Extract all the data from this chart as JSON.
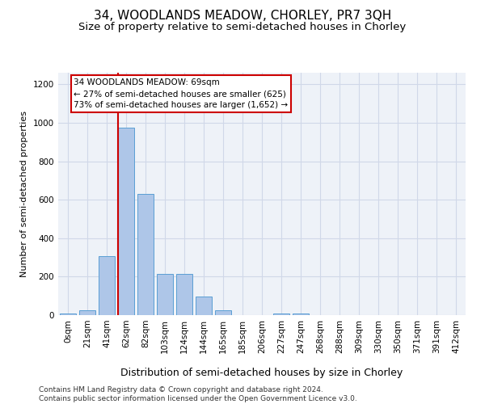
{
  "title": "34, WOODLANDS MEADOW, CHORLEY, PR7 3QH",
  "subtitle": "Size of property relative to semi-detached houses in Chorley",
  "xlabel": "Distribution of semi-detached houses by size in Chorley",
  "ylabel": "Number of semi-detached properties",
  "footer_line1": "Contains HM Land Registry data © Crown copyright and database right 2024.",
  "footer_line2": "Contains public sector information licensed under the Open Government Licence v3.0.",
  "bar_labels": [
    "0sqm",
    "21sqm",
    "41sqm",
    "62sqm",
    "82sqm",
    "103sqm",
    "124sqm",
    "144sqm",
    "165sqm",
    "185sqm",
    "206sqm",
    "227sqm",
    "247sqm",
    "268sqm",
    "288sqm",
    "309sqm",
    "330sqm",
    "350sqm",
    "371sqm",
    "391sqm",
    "412sqm"
  ],
  "bar_values": [
    10,
    25,
    305,
    975,
    630,
    215,
    215,
    95,
    25,
    0,
    0,
    10,
    10,
    0,
    0,
    0,
    0,
    0,
    0,
    0,
    0
  ],
  "bar_color": "#aec6e8",
  "bar_edge_color": "#5a9fd4",
  "property_line_x": 2.575,
  "property_line_label": "34 WOODLANDS MEADOW: 69sqm",
  "annotation_line1": "← 27% of semi-detached houses are smaller (625)",
  "annotation_line2": "73% of semi-detached houses are larger (1,652) →",
  "annotation_box_color": "#ffffff",
  "annotation_box_edge_color": "#cc0000",
  "vline_color": "#cc0000",
  "ylim": [
    0,
    1260
  ],
  "yticks": [
    0,
    200,
    400,
    600,
    800,
    1000,
    1200
  ],
  "grid_color": "#d0d8e8",
  "bg_color": "#eef2f8",
  "title_fontsize": 11,
  "subtitle_fontsize": 9.5,
  "xlabel_fontsize": 9,
  "ylabel_fontsize": 8,
  "tick_fontsize": 7.5,
  "footer_fontsize": 6.5,
  "ann_fontsize": 7.5
}
